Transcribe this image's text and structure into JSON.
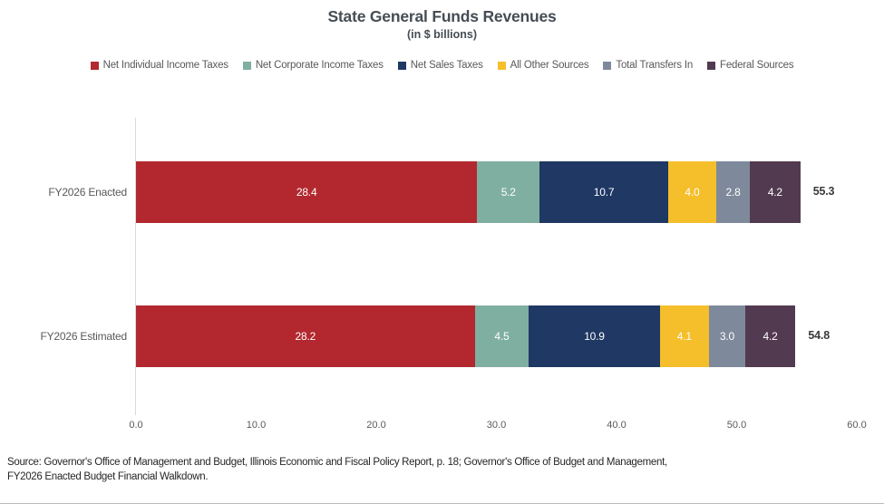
{
  "chart_data": {
    "type": "bar",
    "orientation": "horizontal",
    "stacked": true,
    "title": "State General Funds Revenues",
    "subtitle": "(in $ billions)",
    "categories": [
      "FY2026 Enacted",
      "FY2026 Estimated"
    ],
    "series": [
      {
        "name": "Net Individual Income Taxes",
        "color": "#b2282e",
        "values": [
          28.4,
          28.2
        ]
      },
      {
        "name": "Net Corporate Income Taxes",
        "color": "#7fafa0",
        "values": [
          5.2,
          4.5
        ]
      },
      {
        "name": "Net Sales Taxes",
        "color": "#1f3864",
        "values": [
          10.7,
          10.9
        ]
      },
      {
        "name": "All Other Sources",
        "color": "#f5be2b",
        "values": [
          4.0,
          4.1
        ]
      },
      {
        "name": "Total Transfers In",
        "color": "#7e899b",
        "values": [
          2.8,
          3.0
        ]
      },
      {
        "name": "Federal Sources",
        "color": "#523a50",
        "values": [
          4.2,
          4.2
        ]
      }
    ],
    "totals": [
      "55.3",
      "54.8"
    ],
    "x_ticks": [
      0.0,
      10.0,
      20.0,
      30.0,
      40.0,
      50.0,
      60.0
    ],
    "x_tick_labels": [
      "0.0",
      "10.0",
      "20.0",
      "30.0",
      "40.0",
      "50.0",
      "60.0"
    ],
    "xlim": [
      0,
      60
    ],
    "legend_position": "top",
    "grid": false,
    "value_label_color": "#ffffff"
  },
  "footer": {
    "line1": "Source: Governor's Office of Management and Budget, Illinois Economic and Fiscal Policy Report, p. 18; Governor's Office of Budget and Management,",
    "line2": "FY2026 Enacted Budget Financial Walkdown."
  }
}
